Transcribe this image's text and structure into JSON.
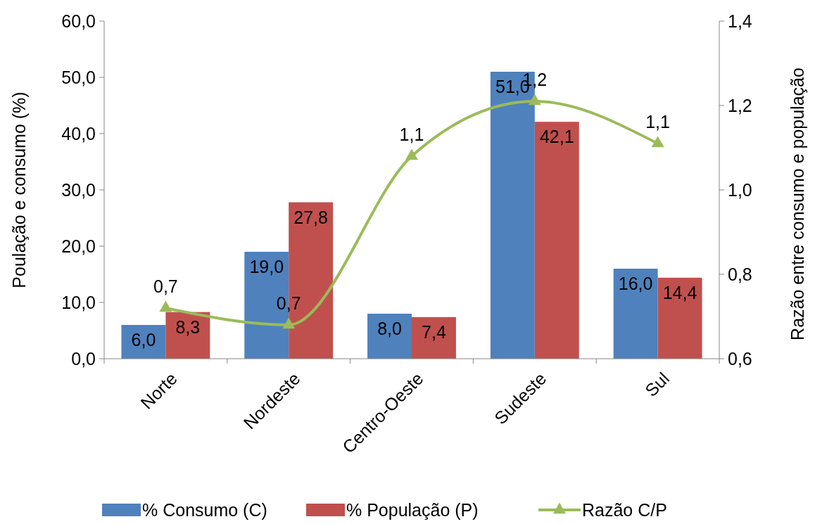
{
  "chart_data": {
    "type": "bar",
    "categories": [
      "Norte",
      "Nordeste",
      "Centro-Oeste",
      "Sudeste",
      "Sul"
    ],
    "series": [
      {
        "name": "% Consumo (C)",
        "color": "#4f81bd",
        "values": [
          6.0,
          19.0,
          8.0,
          51.0,
          16.0
        ],
        "value_labels": [
          "6,0",
          "19,0",
          "8,0",
          "51,0",
          "16,0"
        ]
      },
      {
        "name": "% População (P)",
        "color": "#c0504d",
        "values": [
          8.3,
          27.8,
          7.4,
          42.1,
          14.4
        ],
        "value_labels": [
          "8,3",
          "27,8",
          "7,4",
          "42,1",
          "14,4"
        ]
      },
      {
        "name": "Razão C/P",
        "type": "line",
        "axis": "y2",
        "color": "#9bbb59",
        "marker": "triangle",
        "values": [
          0.72,
          0.68,
          1.08,
          1.21,
          1.11
        ],
        "value_labels": [
          "0,7",
          "0,7",
          "1,1",
          "1,2",
          "1,1"
        ]
      }
    ],
    "ylabel": "Poulação e consumo (%)",
    "y2label": "Razão entre consumo e população",
    "ylim": [
      0,
      60
    ],
    "yticks": [
      {
        "value": 0,
        "label": "0,0"
      },
      {
        "value": 10,
        "label": "10,0"
      },
      {
        "value": 20,
        "label": "20,0"
      },
      {
        "value": 30,
        "label": "30,0"
      },
      {
        "value": 40,
        "label": "40,0"
      },
      {
        "value": 50,
        "label": "50,0"
      },
      {
        "value": 60,
        "label": "60,0"
      }
    ],
    "y2lim": [
      0.6,
      1.4
    ],
    "y2ticks": [
      {
        "value": 0.6,
        "label": "0,6"
      },
      {
        "value": 0.8,
        "label": "0,8"
      },
      {
        "value": 1.0,
        "label": "1,0"
      },
      {
        "value": 1.2,
        "label": "1,2"
      },
      {
        "value": 1.4,
        "label": "1,4"
      }
    ],
    "legend": "bottom",
    "grid": false
  }
}
